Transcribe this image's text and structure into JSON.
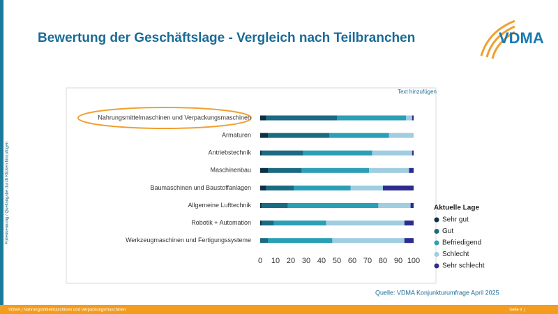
{
  "slide": {
    "logo": "VDMA",
    "side_note": "Folienkennung / Quellangabe durch Klicken hinzufügen",
    "placeholder": "Text hinzufügen",
    "source": "Quelle: VDMA Konjunkturumfrage April 2025",
    "footer": "VDMA | Nahrungsmittelmaschinen und Verpackungsmaschinen",
    "page": "Seite 4 |"
  },
  "chart_data": {
    "type": "stacked-bar-horizontal",
    "title": "Bewertung der Geschäftslage - Vergleich nach Teilbranchen",
    "categories": [
      "Nahrungsmittelmaschinen und Verpackungsmaschinen",
      "Armaturen",
      "Antriebstechnik",
      "Maschinenbau",
      "Baumaschinen und Baustoffanlagen",
      "Allgemeine Lufttechnik",
      "Robotik + Automation",
      "Werkzeugmaschinen und Fertigungssysteme"
    ],
    "legend_title": "Aktuelle Lage",
    "legend": "right",
    "series": [
      {
        "name": "Sehr gut",
        "color": "#0e2f46",
        "values": [
          4,
          5,
          1,
          5,
          4,
          1,
          1,
          0
        ]
      },
      {
        "name": "Gut",
        "color": "#1a6b82",
        "values": [
          46,
          40,
          27,
          22,
          18,
          17,
          8,
          5
        ]
      },
      {
        "name": "Befriedigend",
        "color": "#2a9fb6",
        "values": [
          45,
          39,
          45,
          44,
          37,
          59,
          34,
          42
        ]
      },
      {
        "name": "Schlecht",
        "color": "#a0cde0",
        "values": [
          4,
          16,
          26,
          26,
          21,
          21,
          51,
          47
        ]
      },
      {
        "name": "Sehr schlecht",
        "color": "#2b2b90",
        "values": [
          1,
          0,
          1,
          3,
          20,
          2,
          6,
          6
        ]
      }
    ],
    "xlim": [
      0,
      100
    ],
    "xticks": [
      0,
      10,
      20,
      30,
      40,
      50,
      60,
      70,
      80,
      90,
      100
    ],
    "grid": false
  }
}
